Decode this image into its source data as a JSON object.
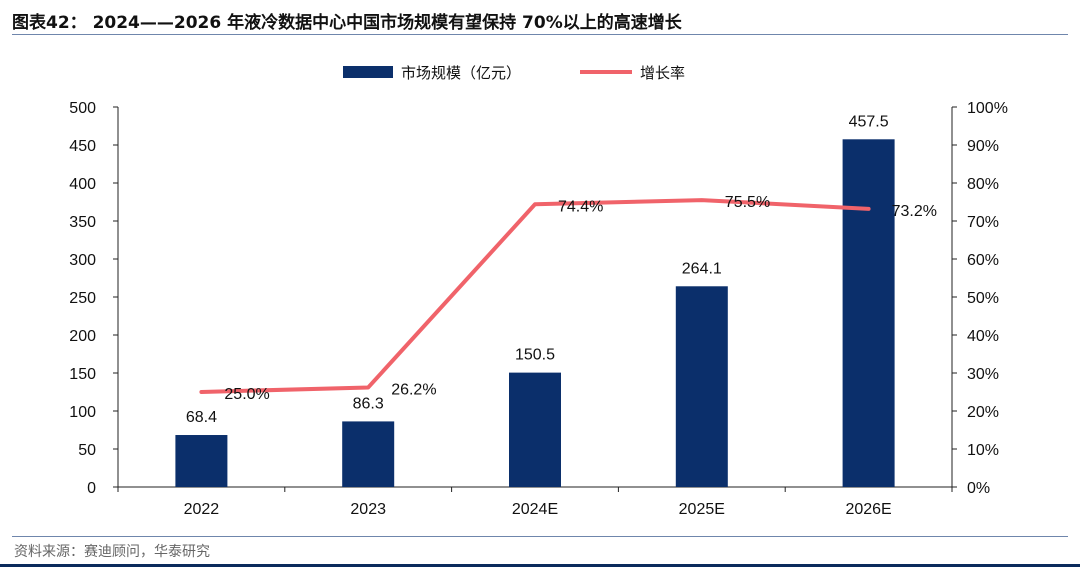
{
  "title": "图表42： 2024——2026 年液冷数据中心中国市场规模有望保持 70%以上的高速增长",
  "source": "资料来源：赛迪顾问，华泰研究",
  "colors": {
    "bar": "#0b2f6b",
    "line": "#f0636a",
    "axis": "#222222",
    "rule": "#6f86ac"
  },
  "chart_data": {
    "type": "bar",
    "categories": [
      "2022",
      "2023",
      "2024E",
      "2025E",
      "2026E"
    ],
    "series": [
      {
        "name": "市场规模（亿元）",
        "type": "bar",
        "axis": "left",
        "values": [
          68.4,
          86.3,
          150.5,
          264.1,
          457.5
        ],
        "labels": [
          "68.4",
          "86.3",
          "150.5",
          "264.1",
          "457.5"
        ]
      },
      {
        "name": "增长率",
        "type": "line",
        "axis": "right",
        "values": [
          25.0,
          26.2,
          74.4,
          75.5,
          73.2
        ],
        "labels": [
          "25.0%",
          "26.2%",
          "74.4%",
          "75.5%",
          "73.2%"
        ]
      }
    ],
    "y_left": {
      "ylim": [
        0,
        500
      ],
      "ticks": [
        0,
        50,
        100,
        150,
        200,
        250,
        300,
        350,
        400,
        450,
        500
      ]
    },
    "y_right": {
      "ylim": [
        0,
        100
      ],
      "ticks": [
        "0%",
        "10%",
        "20%",
        "30%",
        "40%",
        "50%",
        "60%",
        "70%",
        "80%",
        "90%",
        "100%"
      ]
    },
    "legend_position": "top-center",
    "grid": false
  }
}
